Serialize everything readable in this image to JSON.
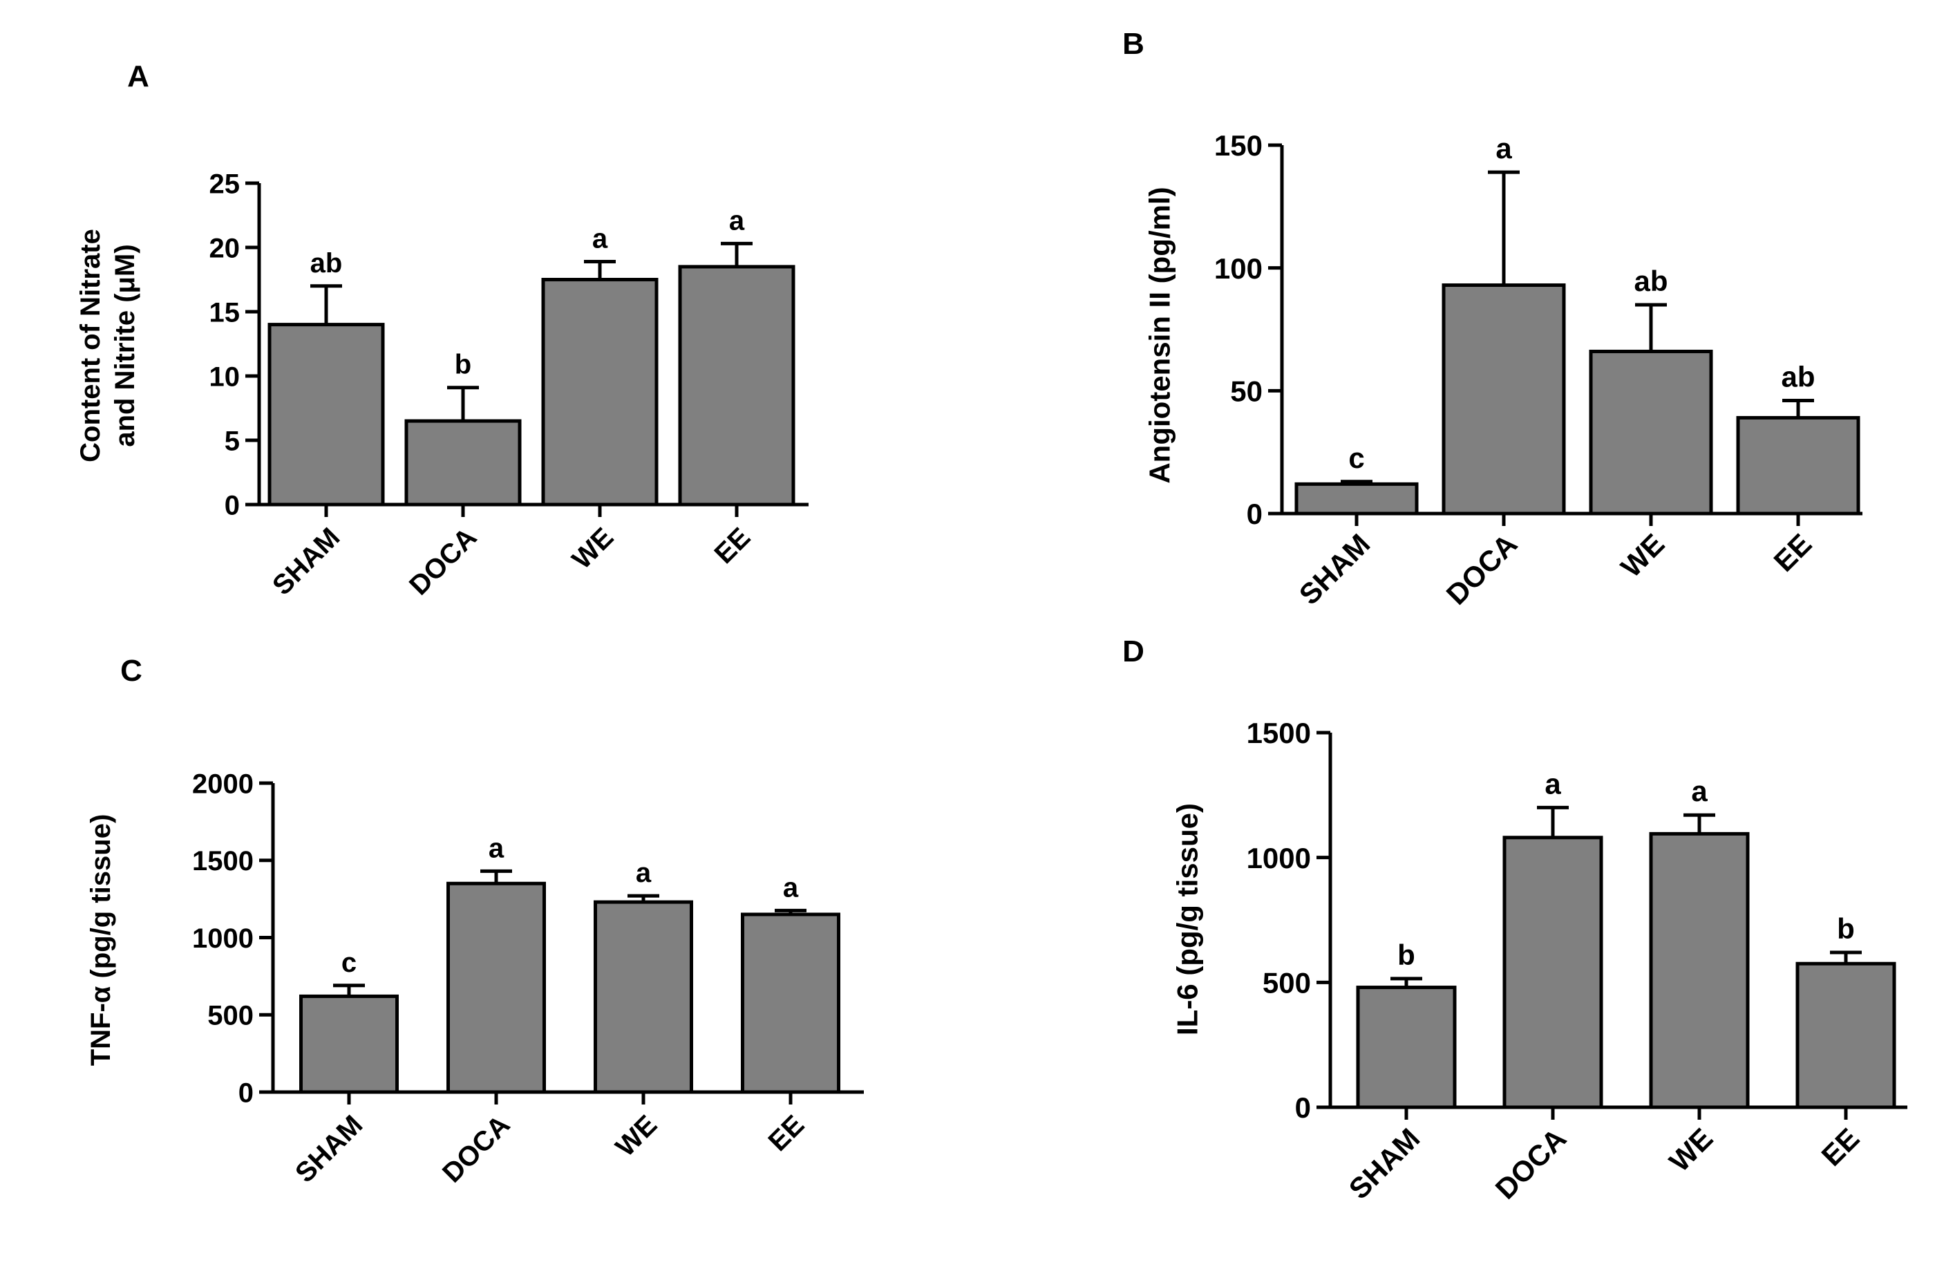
{
  "figure": {
    "bar_color": "#808080",
    "axis_color": "#000000"
  },
  "chart_data": [
    {
      "panel": "A",
      "type": "bar",
      "categories": [
        "SHAM",
        "DOCA",
        "WE",
        "EE"
      ],
      "values": [
        14.0,
        6.5,
        17.5,
        18.5
      ],
      "errors": [
        3.0,
        2.6,
        1.4,
        1.8
      ],
      "letters": [
        "ab",
        "b",
        "a",
        "a"
      ],
      "ylabel": [
        "Content of Nitrate",
        "and Nitrite (μM)"
      ],
      "xlabel": "",
      "ylim": [
        0,
        25
      ],
      "yticks": [
        0,
        5,
        10,
        15,
        20,
        25
      ],
      "ytick_labels": [
        "0",
        "5",
        "10",
        "15",
        "20",
        "25"
      ]
    },
    {
      "panel": "B",
      "type": "bar",
      "categories": [
        "SHAM",
        "DOCA",
        "WE",
        "EE"
      ],
      "values": [
        12,
        93,
        66,
        39
      ],
      "errors": [
        1,
        46,
        19,
        7
      ],
      "letters": [
        "c",
        "a",
        "ab",
        "ab"
      ],
      "ylabel": [
        "Angiotensin II (pg/ml)"
      ],
      "xlabel": "",
      "ylim": [
        0,
        150
      ],
      "yticks": [
        0,
        50,
        100,
        150
      ],
      "ytick_labels": [
        "0",
        "50",
        "100",
        "150"
      ]
    },
    {
      "panel": "C",
      "type": "bar",
      "categories": [
        "SHAM",
        "DOCA",
        "WE",
        "EE"
      ],
      "values": [
        620,
        1350,
        1230,
        1150
      ],
      "errors": [
        70,
        80,
        40,
        25
      ],
      "letters": [
        "c",
        "a",
        "a",
        "a"
      ],
      "ylabel": [
        "TNF-α (pg/g tissue)"
      ],
      "xlabel": "",
      "ylim": [
        0,
        2000
      ],
      "yticks": [
        0,
        500,
        1000,
        1500,
        2000
      ],
      "ytick_labels": [
        "0",
        "500",
        "1000",
        "1500",
        "2000"
      ]
    },
    {
      "panel": "D",
      "type": "bar",
      "categories": [
        "SHAM",
        "DOCA",
        "WE",
        "EE"
      ],
      "values": [
        480,
        1080,
        1095,
        575
      ],
      "errors": [
        35,
        120,
        75,
        45
      ],
      "letters": [
        "b",
        "a",
        "a",
        "b"
      ],
      "ylabel": [
        "IL-6 (pg/g tissue)"
      ],
      "xlabel": "",
      "ylim": [
        0,
        1500
      ],
      "yticks": [
        0,
        500,
        1000,
        1500
      ],
      "ytick_labels": [
        "0",
        "500",
        "1000",
        "1500"
      ]
    }
  ]
}
